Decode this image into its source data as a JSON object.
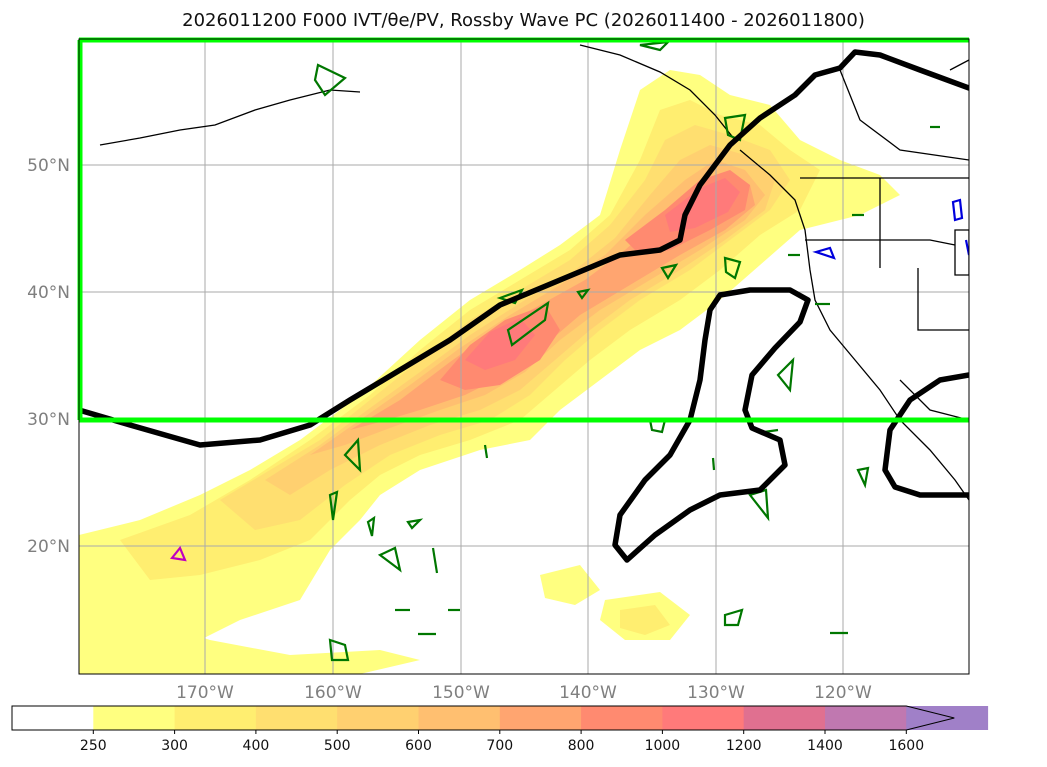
{
  "title": "2026011200 F000 IVT/θe/PV, Rossby Wave PC (2026011400 - 2026011800)",
  "map": {
    "lat_labels": [
      "50°N",
      "40°N",
      "30°N",
      "20°N"
    ],
    "lon_labels": [
      "170°W",
      "160°W",
      "150°W",
      "140°W",
      "130°W",
      "120°W"
    ],
    "lon_range": [
      -180,
      -110
    ],
    "lat_range": [
      10,
      60
    ],
    "highlight_box": {
      "lat_min": 30,
      "lat_max": 60,
      "lon_min": -180,
      "lon_max": -110,
      "color": "#00ff00"
    },
    "contour_color": "#000000",
    "small_contour_colors": {
      "theta_e": "#007700",
      "pv": "#0000dd",
      "other": "#c000c0"
    }
  },
  "colorbar": {
    "levels": [
      "250",
      "300",
      "400",
      "500",
      "600",
      "700",
      "800",
      "1000",
      "1200",
      "1400",
      "1600"
    ],
    "colors": [
      "#ffff80",
      "#ffee70",
      "#ffdf70",
      "#ffd070",
      "#ffbf70",
      "#ffa570",
      "#ff8a70",
      "#ff7a7a",
      "#e07090",
      "#c078b0",
      "#a080c8"
    ],
    "extend": "max"
  }
}
